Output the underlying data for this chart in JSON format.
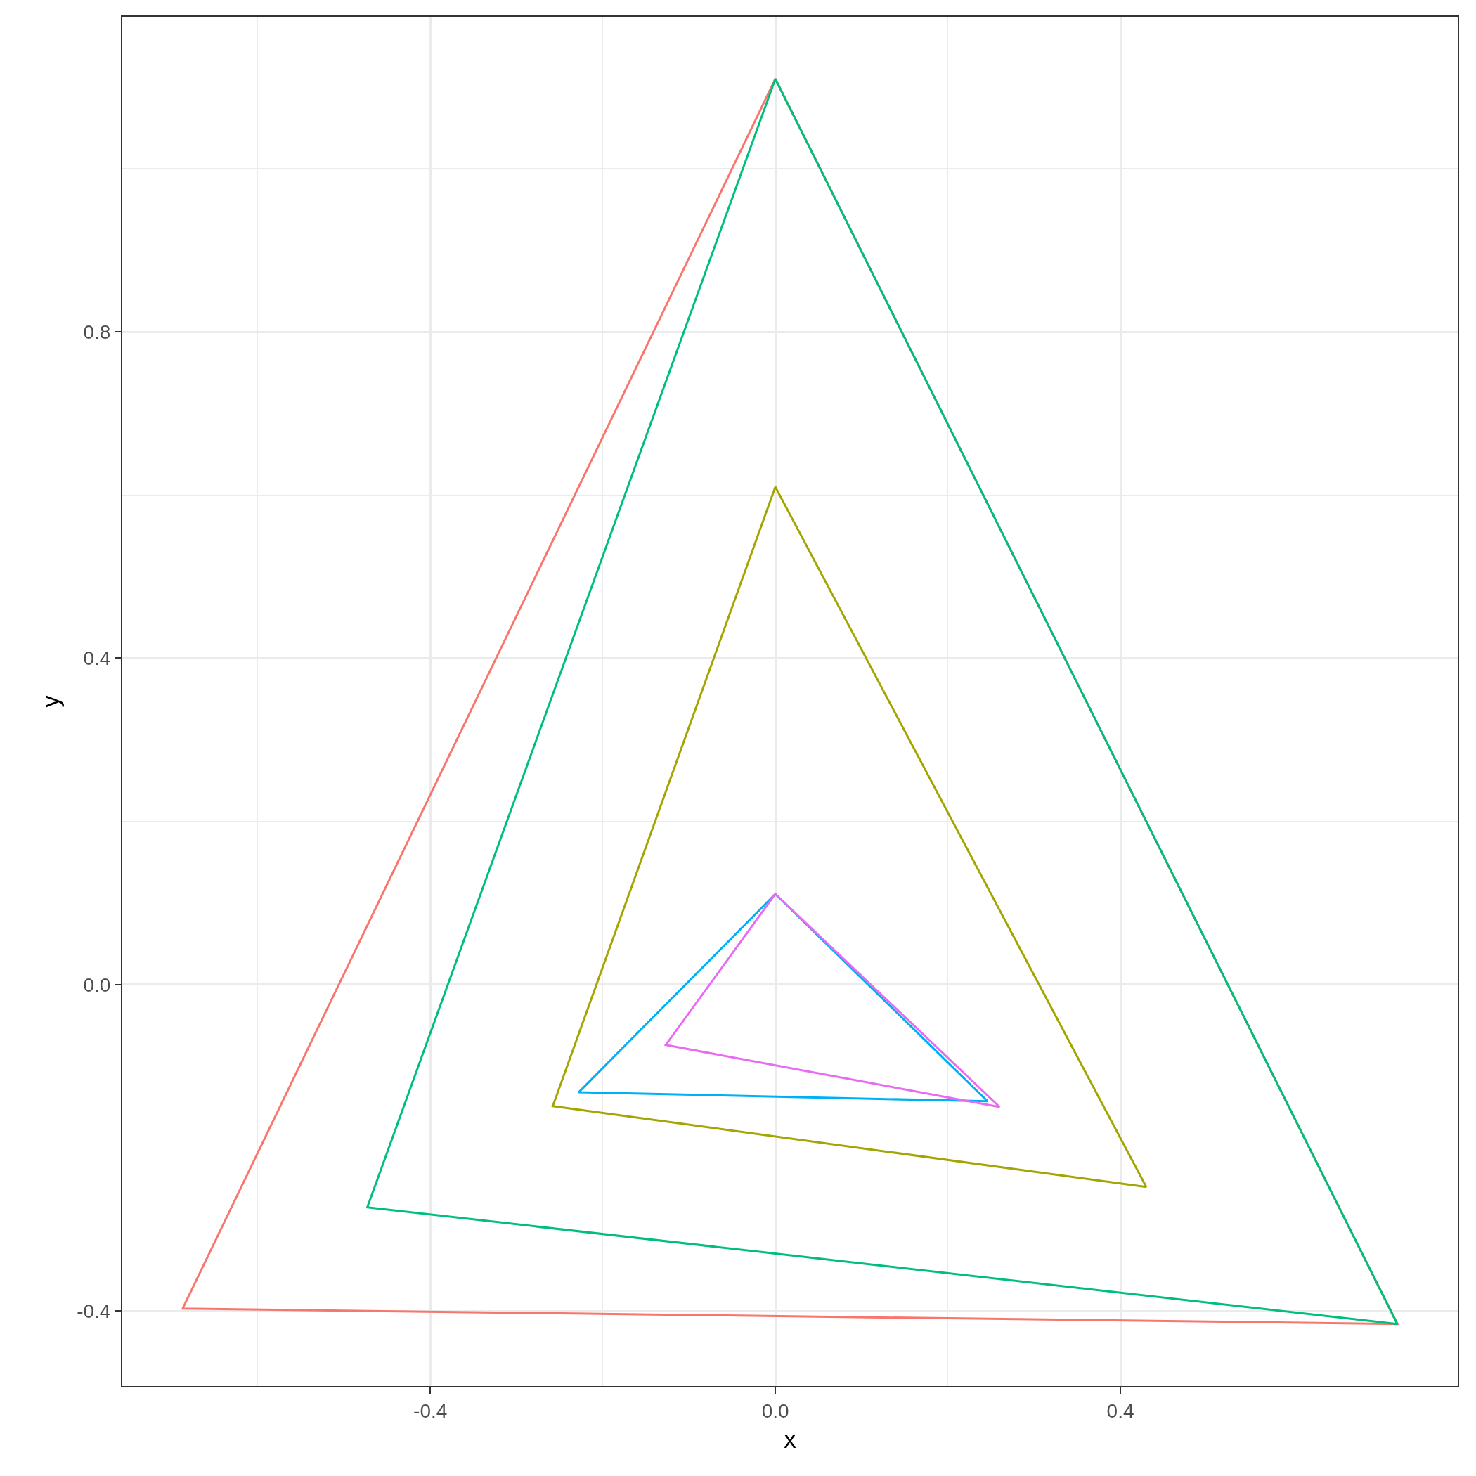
{
  "chart_data": {
    "type": "line",
    "xlabel": "x",
    "ylabel": "y",
    "xlim": [
      -0.757,
      0.791
    ],
    "ylim": [
      -0.492,
      1.186
    ],
    "xticks": [
      {
        "value": -0.6,
        "label": null
      },
      -0.4,
      {
        "value": -0.2,
        "label": null
      },
      {
        "value": 0,
        "label": "0.0"
      },
      {
        "value": 0.2,
        "label": null
      },
      0.4,
      {
        "value": 0.6,
        "label": null
      }
    ],
    "yticks": [
      -0.4,
      {
        "value": -0.2,
        "label": null
      },
      {
        "value": 0,
        "label": "0.0"
      },
      {
        "value": 0.2,
        "label": null
      },
      0.4,
      {
        "value": 0.6,
        "label": null
      },
      0.8,
      {
        "value": 1.0,
        "label": null
      }
    ],
    "grid": true,
    "series": [
      {
        "color": "#f8766d",
        "x": [
          0,
          -0.687,
          0.721,
          0,
          -0.687
        ],
        "values": [
          1.11,
          -0.397,
          -0.416,
          1.11,
          -0.397
        ]
      },
      {
        "color": "#a3a500",
        "x": [
          0,
          -0.258,
          0.43,
          0,
          -0.258
        ],
        "values": [
          0.61,
          -0.149,
          -0.248,
          0.61,
          -0.149
        ]
      },
      {
        "color": "#00bf7d",
        "x": [
          0,
          -0.473,
          0.721,
          0,
          -0.473
        ],
        "values": [
          1.11,
          -0.273,
          -0.416,
          1.11,
          -0.273
        ]
      },
      {
        "color": "#00b0f6",
        "x": [
          0,
          -0.228,
          0.246,
          0,
          -0.228
        ],
        "values": [
          0.111,
          -0.132,
          -0.143,
          0.111,
          -0.132
        ]
      },
      {
        "color": "#e76bf3",
        "x": [
          0,
          -0.127,
          0.26,
          0,
          -0.127
        ],
        "values": [
          0.111,
          -0.074,
          -0.15,
          0.111,
          -0.074
        ]
      }
    ]
  }
}
